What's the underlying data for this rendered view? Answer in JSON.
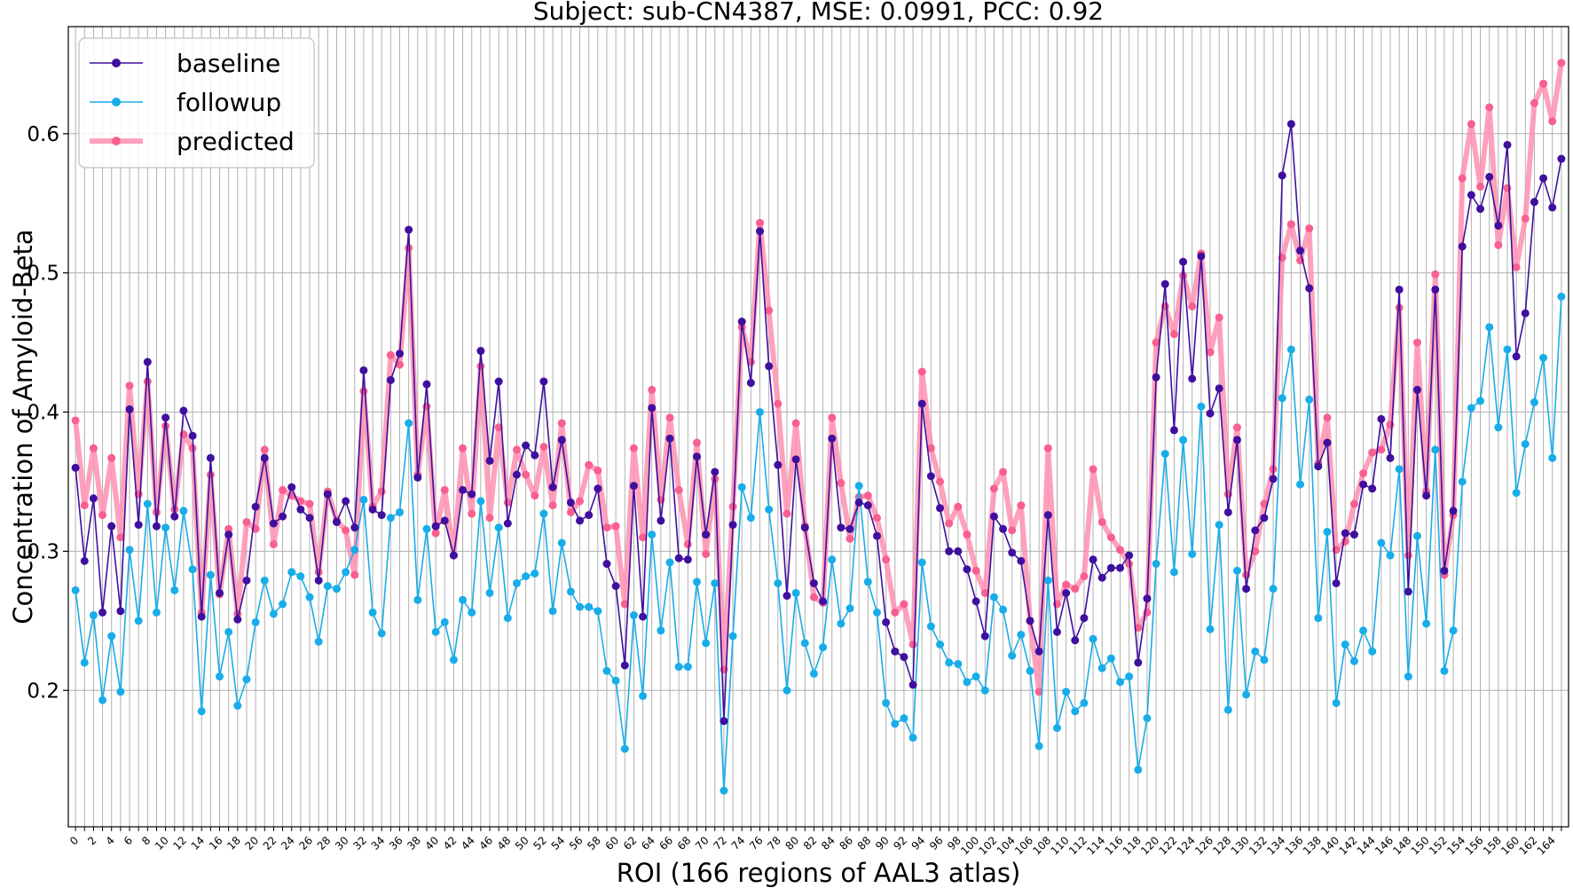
{
  "chart_data": {
    "type": "line",
    "title": "Subject: sub-CN4387, MSE: 0.0991, PCC: 0.92",
    "xlabel": "ROI (166 regions of AAL3 atlas)",
    "ylabel": "Concentration of Amyloid-Beta",
    "xlim": [
      -0.8,
      165.8
    ],
    "ylim": [
      0.102,
      0.677
    ],
    "yticks": [
      0.2,
      0.3,
      0.4,
      0.5,
      0.6
    ],
    "ytick_labels": [
      "0.2",
      "0.3",
      "0.4",
      "0.5",
      "0.6"
    ],
    "xticks": [
      0,
      2,
      4,
      6,
      8,
      10,
      12,
      14,
      16,
      18,
      20,
      22,
      24,
      26,
      28,
      30,
      32,
      34,
      36,
      38,
      40,
      42,
      44,
      46,
      48,
      50,
      52,
      54,
      56,
      58,
      60,
      62,
      64,
      66,
      68,
      70,
      72,
      74,
      76,
      78,
      80,
      82,
      84,
      86,
      88,
      90,
      92,
      94,
      96,
      98,
      100,
      102,
      104,
      106,
      108,
      110,
      112,
      114,
      116,
      118,
      120,
      122,
      124,
      126,
      128,
      130,
      132,
      134,
      136,
      138,
      140,
      142,
      144,
      146,
      148,
      150,
      152,
      154,
      156,
      158,
      160,
      162,
      164
    ],
    "xtick_labels": [
      "0",
      "2",
      "4",
      "6",
      "8",
      "10",
      "12",
      "14",
      "16",
      "18",
      "20",
      "22",
      "24",
      "26",
      "28",
      "30",
      "32",
      "34",
      "36",
      "38",
      "40",
      "42",
      "44",
      "46",
      "48",
      "50",
      "52",
      "54",
      "56",
      "58",
      "60",
      "62",
      "64",
      "66",
      "68",
      "70",
      "72",
      "74",
      "76",
      "78",
      "80",
      "82",
      "84",
      "86",
      "88",
      "90",
      "92",
      "94",
      "96",
      "98",
      "100",
      "102",
      "104",
      "106",
      "108",
      "110",
      "112",
      "114",
      "116",
      "118",
      "120",
      "122",
      "124",
      "126",
      "128",
      "130",
      "132",
      "134",
      "136",
      "138",
      "140",
      "142",
      "144",
      "146",
      "148",
      "150",
      "152",
      "154",
      "156",
      "158",
      "160",
      "162",
      "164"
    ],
    "grid": true,
    "legend_position": "top-left",
    "series": [
      {
        "name": "baseline",
        "color": "#3f0f9e",
        "values": [
          0.36,
          0.293,
          0.338,
          0.256,
          0.318,
          0.257,
          0.402,
          0.319,
          0.436,
          0.318,
          0.396,
          0.325,
          0.401,
          0.383,
          0.253,
          0.367,
          0.27,
          0.312,
          0.251,
          0.279,
          0.332,
          0.367,
          0.32,
          0.325,
          0.346,
          0.33,
          0.324,
          0.279,
          0.341,
          0.321,
          0.336,
          0.317,
          0.43,
          0.33,
          0.326,
          0.423,
          0.442,
          0.531,
          0.353,
          0.42,
          0.318,
          0.322,
          0.297,
          0.344,
          0.341,
          0.444,
          0.365,
          0.422,
          0.32,
          0.355,
          0.376,
          0.369,
          0.422,
          0.346,
          0.38,
          0.335,
          0.322,
          0.326,
          0.345,
          0.291,
          0.275,
          0.218,
          0.347,
          0.253,
          0.403,
          0.322,
          0.381,
          0.295,
          0.294,
          0.368,
          0.312,
          0.357,
          0.178,
          0.319,
          0.465,
          0.421,
          0.53,
          0.433,
          0.362,
          0.268,
          0.366,
          0.317,
          0.277,
          0.264,
          0.381,
          0.317,
          0.316,
          0.335,
          0.333,
          0.311,
          0.249,
          0.228,
          0.224,
          0.204,
          0.406,
          0.354,
          0.331,
          0.3,
          0.3,
          0.287,
          0.264,
          0.239,
          0.325,
          0.316,
          0.299,
          0.293,
          0.25,
          0.228,
          0.326,
          0.242,
          0.27,
          0.236,
          0.252,
          0.294,
          0.281,
          0.288,
          0.288,
          0.297,
          0.22,
          0.266,
          0.425,
          0.492,
          0.387,
          0.508,
          0.424,
          0.512,
          0.399,
          0.417,
          0.328,
          0.38,
          0.273,
          0.315,
          0.324,
          0.352,
          0.57,
          0.607,
          0.516,
          0.489,
          0.361,
          0.378,
          0.277,
          0.313,
          0.312,
          0.348,
          0.345,
          0.395,
          0.367,
          0.488,
          0.271,
          0.416,
          0.34,
          0.488,
          0.286,
          0.329,
          0.519,
          0.556,
          0.546,
          0.569,
          0.534,
          0.592,
          0.44,
          0.471,
          0.551,
          0.568,
          0.547,
          0.582
        ]
      },
      {
        "name": "followup",
        "color": "#18ade8",
        "values": [
          0.272,
          0.22,
          0.254,
          0.193,
          0.239,
          0.199,
          0.301,
          0.25,
          0.334,
          0.256,
          0.317,
          0.272,
          0.329,
          0.287,
          0.185,
          0.283,
          0.21,
          0.242,
          0.189,
          0.208,
          0.249,
          0.279,
          0.255,
          0.262,
          0.285,
          0.282,
          0.267,
          0.235,
          0.275,
          0.273,
          0.285,
          0.301,
          0.337,
          0.256,
          0.241,
          0.324,
          0.328,
          0.392,
          0.265,
          0.316,
          0.242,
          0.249,
          0.222,
          0.265,
          0.256,
          0.336,
          0.27,
          0.317,
          0.252,
          0.277,
          0.282,
          0.284,
          0.327,
          0.257,
          0.306,
          0.271,
          0.26,
          0.26,
          0.257,
          0.214,
          0.207,
          0.158,
          0.254,
          0.196,
          0.312,
          0.243,
          0.292,
          0.217,
          0.217,
          0.278,
          0.234,
          0.277,
          0.128,
          0.239,
          0.346,
          0.324,
          0.4,
          0.33,
          0.277,
          0.2,
          0.27,
          0.234,
          0.212,
          0.231,
          0.294,
          0.248,
          0.259,
          0.347,
          0.278,
          0.256,
          0.191,
          0.176,
          0.18,
          0.166,
          0.292,
          0.246,
          0.233,
          0.22,
          0.219,
          0.206,
          0.21,
          0.2,
          0.267,
          0.258,
          0.225,
          0.24,
          0.214,
          0.16,
          0.279,
          0.173,
          0.199,
          0.185,
          0.191,
          0.237,
          0.216,
          0.223,
          0.206,
          0.21,
          0.143,
          0.18,
          0.291,
          0.37,
          0.285,
          0.38,
          0.298,
          0.404,
          0.244,
          0.319,
          0.186,
          0.286,
          0.197,
          0.228,
          0.222,
          0.273,
          0.41,
          0.445,
          0.348,
          0.409,
          0.252,
          0.314,
          0.191,
          0.233,
          0.221,
          0.243,
          0.228,
          0.306,
          0.297,
          0.359,
          0.21,
          0.311,
          0.248,
          0.373,
          0.214,
          0.243,
          0.35,
          0.403,
          0.408,
          0.461,
          0.389,
          0.445,
          0.342,
          0.377,
          0.407,
          0.439,
          0.367,
          0.483
        ]
      },
      {
        "name": "predicted",
        "color": "#ff8fb0",
        "values": [
          0.394,
          0.333,
          0.374,
          0.326,
          0.367,
          0.31,
          0.419,
          0.341,
          0.422,
          0.328,
          0.39,
          0.33,
          0.384,
          0.374,
          0.256,
          0.355,
          0.269,
          0.316,
          0.255,
          0.321,
          0.316,
          0.373,
          0.305,
          0.344,
          0.34,
          0.336,
          0.334,
          0.285,
          0.343,
          0.322,
          0.315,
          0.283,
          0.415,
          0.332,
          0.343,
          0.441,
          0.434,
          0.518,
          0.355,
          0.404,
          0.313,
          0.344,
          0.297,
          0.374,
          0.327,
          0.433,
          0.324,
          0.389,
          0.335,
          0.373,
          0.355,
          0.34,
          0.375,
          0.333,
          0.392,
          0.328,
          0.336,
          0.362,
          0.358,
          0.317,
          0.318,
          0.262,
          0.374,
          0.31,
          0.416,
          0.337,
          0.396,
          0.344,
          0.305,
          0.378,
          0.298,
          0.352,
          0.215,
          0.332,
          0.461,
          0.436,
          0.536,
          0.473,
          0.406,
          0.327,
          0.392,
          0.318,
          0.267,
          0.263,
          0.396,
          0.349,
          0.309,
          0.339,
          0.34,
          0.324,
          0.294,
          0.256,
          0.262,
          0.233,
          0.429,
          0.374,
          0.35,
          0.32,
          0.332,
          0.312,
          0.286,
          0.27,
          0.345,
          0.357,
          0.315,
          0.333,
          0.25,
          0.199,
          0.374,
          0.262,
          0.276,
          0.273,
          0.282,
          0.359,
          0.321,
          0.31,
          0.301,
          0.291,
          0.245,
          0.256,
          0.45,
          0.476,
          0.456,
          0.498,
          0.476,
          0.514,
          0.443,
          0.468,
          0.341,
          0.389,
          0.283,
          0.3,
          0.334,
          0.359,
          0.511,
          0.535,
          0.509,
          0.532,
          0.363,
          0.396,
          0.301,
          0.307,
          0.334,
          0.356,
          0.371,
          0.373,
          0.391,
          0.475,
          0.297,
          0.45,
          0.343,
          0.499,
          0.283,
          0.326,
          0.568,
          0.607,
          0.562,
          0.619,
          0.52,
          0.561,
          0.504,
          0.539,
          0.622,
          0.636,
          0.609,
          0.651
        ]
      }
    ]
  }
}
